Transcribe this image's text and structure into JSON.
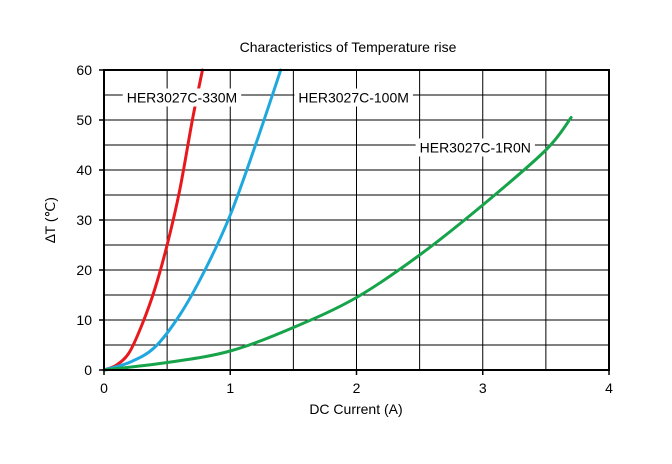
{
  "chart_data": {
    "type": "line",
    "title": "Characteristics of Temperature rise",
    "xlabel": "DC Current (A)",
    "ylabel": "∆T (℃)",
    "xlim": [
      0,
      4
    ],
    "ylim": [
      0,
      60
    ],
    "xticks": [
      0,
      1,
      2,
      3,
      4
    ],
    "yticks": [
      0,
      10,
      20,
      30,
      40,
      50,
      60
    ],
    "x_minor_grid": [
      0.5,
      1.5,
      2.5,
      3.5
    ],
    "y_minor_grid": [
      5,
      15,
      25,
      35,
      45,
      55
    ],
    "grid": true,
    "series": [
      {
        "name": "HER3027C-330M",
        "color": "#e8181d",
        "x": [
          0,
          0.1,
          0.2,
          0.3,
          0.4,
          0.5,
          0.6,
          0.7,
          0.78
        ],
        "y": [
          0,
          1,
          3.5,
          9,
          16,
          25,
          36,
          50,
          60
        ]
      },
      {
        "name": "HER3027C-100M",
        "color": "#1fa8e0",
        "x": [
          0,
          0.2,
          0.4,
          0.6,
          0.8,
          1.0,
          1.2,
          1.4
        ],
        "y": [
          0,
          1.5,
          4.5,
          11,
          20,
          31,
          45,
          60
        ]
      },
      {
        "name": "HER3027C-1R0N",
        "color": "#16a34a",
        "x": [
          0,
          0.5,
          1.0,
          1.5,
          2.0,
          2.5,
          3.0,
          3.5,
          3.7
        ],
        "y": [
          0,
          1.5,
          3.8,
          8.5,
          14.5,
          23,
          33,
          44,
          50.5
        ]
      }
    ]
  }
}
